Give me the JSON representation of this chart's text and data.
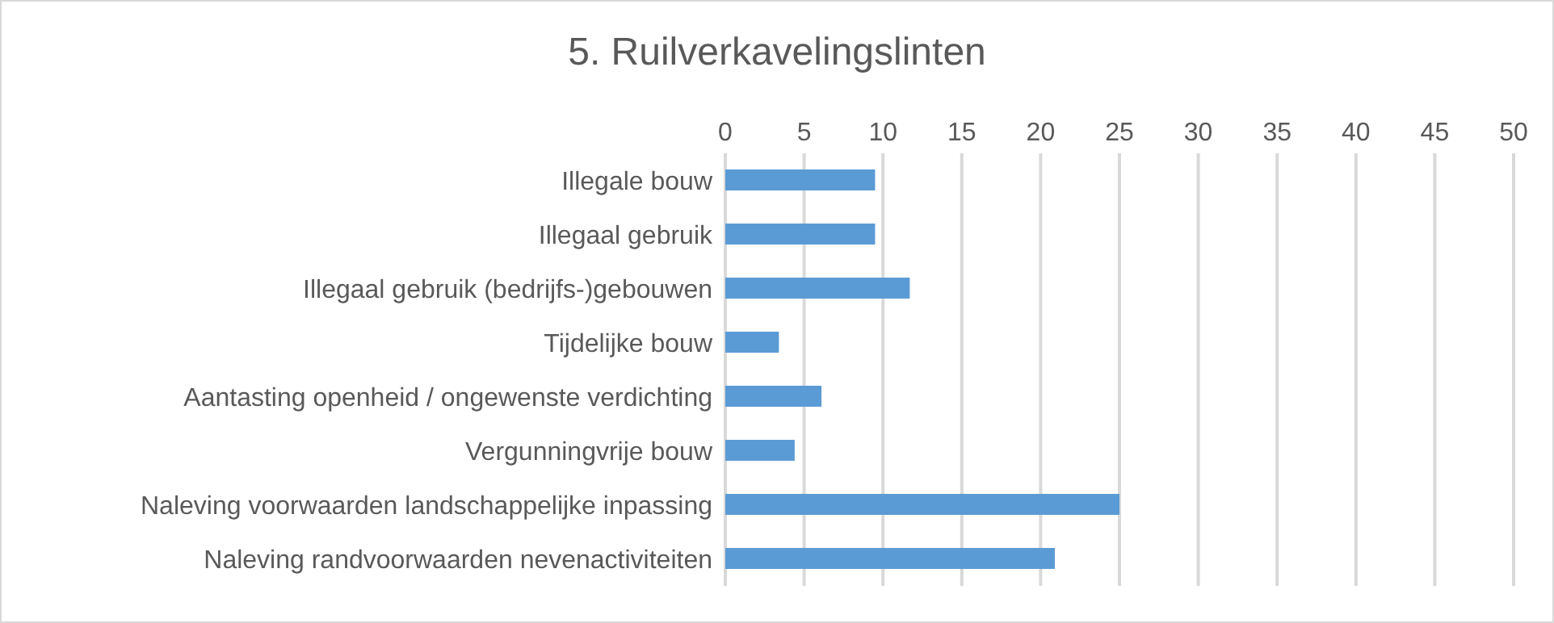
{
  "chart_data": {
    "type": "bar",
    "orientation": "horizontal",
    "title": "5. Ruilverkavelingslinten",
    "categories": [
      "Illegale bouw",
      "Illegaal gebruik",
      "Illegaal gebruik (bedrijfs-)gebouwen",
      "Tijdelijke bouw",
      "Aantasting openheid / ongewenste verdichting",
      "Vergunningvrije bouw",
      "Naleving voorwaarden landschappelijke inpassing",
      "Naleving randvoorwaarden nevenactiviteiten"
    ],
    "values": [
      9.5,
      9.5,
      11.7,
      3.4,
      6.1,
      4.4,
      25,
      20.9
    ],
    "color": "#5b9bd5",
    "xlim": [
      0,
      50
    ],
    "xticks": [
      0,
      5,
      10,
      15,
      20,
      25,
      30,
      35,
      40,
      45,
      50
    ],
    "grid": "x",
    "legend": false
  }
}
